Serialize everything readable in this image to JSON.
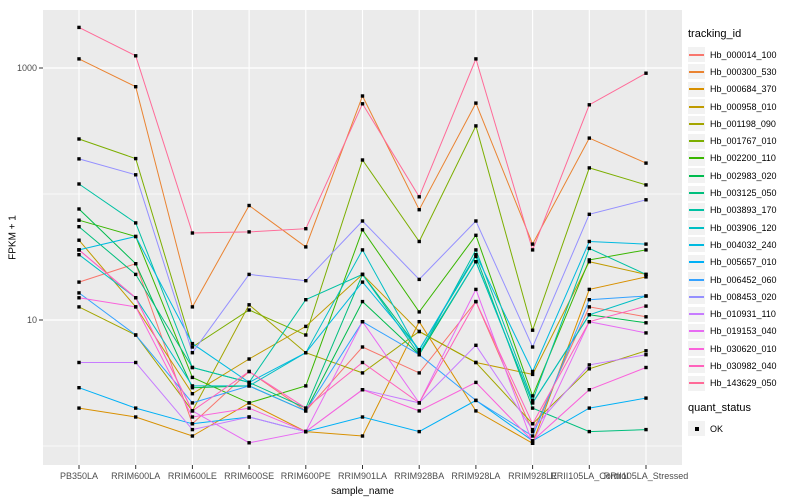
{
  "figure": {
    "background": "#FFFFFF",
    "panel_background": "#EBEBEB",
    "gridline_color": "#FFFFFF",
    "axis_text_color": "#4D4D4D",
    "tick_color": "#333333",
    "point_color": "#000000"
  },
  "chart_data": {
    "type": "line",
    "title": "",
    "xlabel": "sample_name",
    "ylabel": "FPKM + 1",
    "y_scale": "log10",
    "ylim": [
      0.7,
      2300
    ],
    "grid": true,
    "legend_position": "right",
    "marker": "black-square",
    "y_ticks": [
      {
        "label": "10",
        "value": 10
      },
      {
        "label": "1000",
        "value": 1000
      }
    ],
    "y_minor_gridlines": [
      1,
      100
    ],
    "categories": [
      "PB350LA",
      "RRIM600LA",
      "RRIM600LE",
      "RRIM600SE",
      "RRIM600PE",
      "RRIM901LA",
      "RRIM928BA",
      "RRIM928LA",
      "RRIM928LE",
      "RRII105LA_Control",
      "RRII105LA_Stressed"
    ],
    "series": [
      {
        "name": "Hb_000014_100",
        "color": "#F8766D",
        "values": [
          20,
          28,
          1.5,
          3.9,
          1.9,
          6.1,
          3.8,
          14,
          1.3,
          12.7,
          10.6
        ]
      },
      {
        "name": "Hb_000300_530",
        "color": "#EA8331",
        "values": [
          1180,
          710,
          12.7,
          81,
          38,
          600,
          75,
          527,
          40,
          278,
          176
        ]
      },
      {
        "name": "Hb_000684_370",
        "color": "#D89000",
        "values": [
          2.0,
          1.7,
          1.2,
          2.2,
          1.3,
          1.2,
          9.7,
          1.9,
          1.05,
          17.5,
          22
        ]
      },
      {
        "name": "Hb_000958_010",
        "color": "#C09B00",
        "values": [
          43,
          12.7,
          2.6,
          4.9,
          8.9,
          23,
          8.1,
          4.6,
          3.7,
          29,
          23
        ]
      },
      {
        "name": "Hb_001198_090",
        "color": "#A3A500",
        "values": [
          12.7,
          7.6,
          1.9,
          13.2,
          5.5,
          3.8,
          8.1,
          4.6,
          1.5,
          4.1,
          5.7
        ]
      },
      {
        "name": "Hb_001767_010",
        "color": "#7CAE00",
        "values": [
          273,
          191,
          6.1,
          12,
          7.6,
          186,
          42,
          347,
          8.3,
          161,
          118
        ]
      },
      {
        "name": "Hb_002200_110",
        "color": "#39B600",
        "values": [
          62,
          46,
          3.5,
          2.2,
          3.0,
          52,
          11.6,
          47,
          2.5,
          30,
          36
        ]
      },
      {
        "name": "Hb_002983_020",
        "color": "#00BB4E",
        "values": [
          76,
          28,
          2.9,
          3.0,
          1.9,
          14,
          5.3,
          29,
          2.2,
          11,
          9.5
        ]
      },
      {
        "name": "Hb_003125_050",
        "color": "#00BF7D",
        "values": [
          55,
          23,
          4.2,
          3.2,
          2.0,
          23,
          5.8,
          32,
          2.0,
          1.3,
          1.35
        ]
      },
      {
        "name": "Hb_003893_170",
        "color": "#00C1A3",
        "values": [
          120,
          59,
          4.2,
          3.2,
          14.5,
          23,
          5.3,
          36,
          2.3,
          37,
          23
        ]
      },
      {
        "name": "Hb_003906_120",
        "color": "#00BFC4",
        "values": [
          33,
          15,
          3.0,
          3.0,
          5.5,
          36,
          5.5,
          29,
          2.2,
          11,
          15.5
        ]
      },
      {
        "name": "Hb_004032_240",
        "color": "#00BAE0",
        "values": [
          36,
          46,
          6.5,
          3.2,
          5.5,
          20,
          5.8,
          33,
          3.9,
          42,
          40
        ]
      },
      {
        "name": "Hb_005657_010",
        "color": "#00B0F6",
        "values": [
          2.9,
          2.0,
          1.5,
          1.7,
          1.3,
          1.7,
          1.3,
          2.3,
          1.1,
          2.0,
          2.4
        ]
      },
      {
        "name": "Hb_006452_060",
        "color": "#35A2FF",
        "values": [
          16.4,
          7.6,
          2.2,
          3.0,
          1.9,
          9.7,
          5.3,
          2.3,
          1.2,
          14.5,
          15.5
        ]
      },
      {
        "name": "Hb_008453_020",
        "color": "#9590FF",
        "values": [
          190,
          142,
          5.5,
          23,
          20.5,
          61,
          21,
          61,
          6.1,
          69,
          90
        ]
      },
      {
        "name": "Hb_010931_110",
        "color": "#C77CFF",
        "values": [
          4.6,
          4.6,
          1.35,
          1.7,
          1.3,
          2.8,
          2.2,
          6.3,
          1.35,
          4.4,
          5.3
        ]
      },
      {
        "name": "Hb_019153_040",
        "color": "#E76BF3",
        "values": [
          36,
          15,
          1.9,
          1.06,
          1.3,
          9.7,
          2.2,
          17.5,
          1.05,
          9.7,
          7.9
        ]
      },
      {
        "name": "Hb_030620_010",
        "color": "#FA62DB",
        "values": [
          15,
          12.7,
          1.7,
          2.0,
          1.3,
          2.8,
          1.9,
          3.2,
          1.1,
          2.8,
          4.2
        ]
      },
      {
        "name": "Hb_030982_040",
        "color": "#FF62BC",
        "values": [
          36,
          15,
          1.9,
          3.9,
          2.0,
          4.6,
          2.2,
          14,
          1.5,
          9.7,
          12.9
        ]
      },
      {
        "name": "Hb_143629_050",
        "color": "#FF6A98",
        "values": [
          2100,
          1250,
          49,
          50,
          53,
          520,
          95,
          1180,
          36,
          510,
          910
        ]
      }
    ]
  },
  "legend": {
    "tracking_title": "tracking_id",
    "quant_title": "quant_status",
    "quant_items": [
      {
        "label": "OK",
        "marker": "black-square"
      }
    ]
  }
}
